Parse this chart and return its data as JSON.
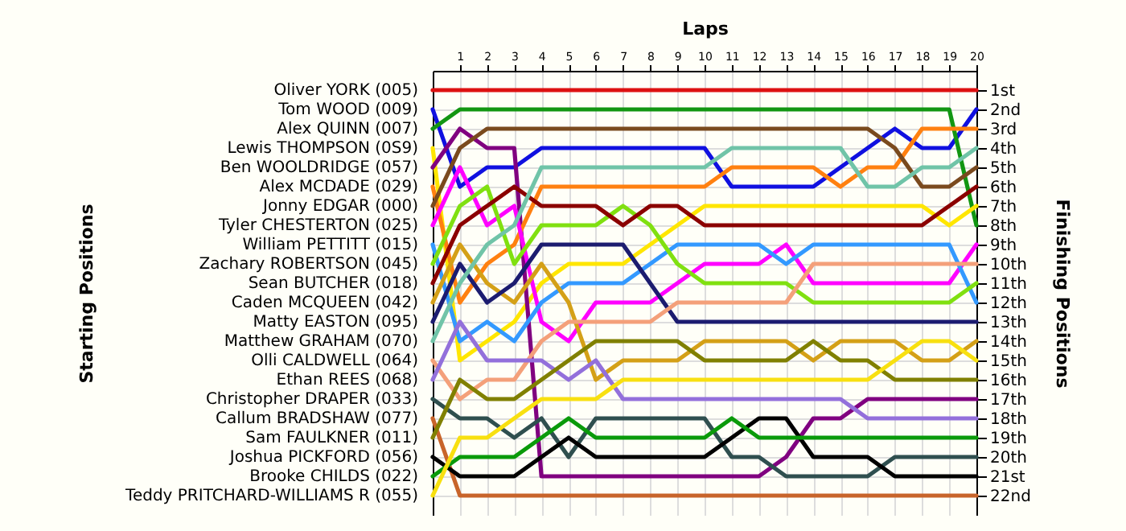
{
  "chart_data": {
    "type": "line",
    "xlabel": "Laps",
    "legend_title": "Starting Positions",
    "ylabel": "Finishing Positions",
    "x": [
      0,
      1,
      2,
      3,
      4,
      5,
      6,
      7,
      8,
      9,
      10,
      11,
      12,
      13,
      14,
      15,
      16,
      17,
      18,
      19,
      20
    ],
    "xlim": [
      0,
      20
    ],
    "xticks": [
      1,
      2,
      3,
      4,
      5,
      6,
      7,
      8,
      9,
      10,
      11,
      12,
      13,
      14,
      15,
      16,
      17,
      18,
      19,
      20
    ],
    "ylim": [
      23,
      0
    ],
    "yticks": [
      {
        "value": 1,
        "label": "1st"
      },
      {
        "value": 2,
        "label": "2nd"
      },
      {
        "value": 3,
        "label": "3rd"
      },
      {
        "value": 4,
        "label": "4th"
      },
      {
        "value": 5,
        "label": "5th"
      },
      {
        "value": 6,
        "label": "6th"
      },
      {
        "value": 7,
        "label": "7th"
      },
      {
        "value": 8,
        "label": "8th"
      },
      {
        "value": 9,
        "label": "9th"
      },
      {
        "value": 10,
        "label": "10th"
      },
      {
        "value": 11,
        "label": "11th"
      },
      {
        "value": 12,
        "label": "12th"
      },
      {
        "value": 13,
        "label": "13th"
      },
      {
        "value": 14,
        "label": "14th"
      },
      {
        "value": 15,
        "label": "15th"
      },
      {
        "value": 16,
        "label": "16th"
      },
      {
        "value": 17,
        "label": "17th"
      },
      {
        "value": 18,
        "label": "18th"
      },
      {
        "value": 19,
        "label": "19th"
      },
      {
        "value": 20,
        "label": "20th"
      },
      {
        "value": 21,
        "label": "21st"
      },
      {
        "value": 22,
        "label": "22nd"
      }
    ],
    "grid": true,
    "legend": "left",
    "marker": "none",
    "line_style": "solid",
    "series": [
      {
        "name": "Oliver YORK (005)",
        "color": "#dd1111",
        "values": [
          1,
          1,
          1,
          1,
          1,
          1,
          1,
          1,
          1,
          1,
          1,
          1,
          1,
          1,
          1,
          1,
          1,
          1,
          1,
          1,
          1
        ]
      },
      {
        "name": "Tom WOOD (009)",
        "color": "#1010e0",
        "values": [
          2,
          6,
          5,
          5,
          4,
          4,
          4,
          4,
          4,
          4,
          4,
          6,
          6,
          6,
          6,
          5,
          4,
          3,
          4,
          4,
          2
        ]
      },
      {
        "name": "Alex QUINN (007)",
        "color": "#129612",
        "values": [
          3,
          2,
          2,
          2,
          2,
          2,
          2,
          2,
          2,
          2,
          2,
          2,
          2,
          2,
          2,
          2,
          2,
          2,
          2,
          2,
          8
        ]
      },
      {
        "name": "Lewis THOMPSON (0S9)",
        "color": "#ffe600",
        "values": [
          4,
          15,
          14,
          13,
          11,
          10,
          10,
          10,
          9,
          8,
          7,
          7,
          7,
          7,
          7,
          7,
          7,
          7,
          7,
          8,
          7
        ]
      },
      {
        "name": "Ben WOOLDRIDGE (057)",
        "color": "#800080",
        "values": [
          5,
          3,
          4,
          4,
          21,
          21,
          21,
          21,
          21,
          21,
          21,
          21,
          21,
          20,
          18,
          18,
          17,
          17,
          17,
          17,
          17
        ]
      },
      {
        "name": "Alex MCDADE (029)",
        "color": "#ff8010",
        "values": [
          6,
          12,
          10,
          9,
          6,
          6,
          6,
          6,
          6,
          6,
          6,
          5,
          5,
          5,
          5,
          6,
          5,
          5,
          3,
          3,
          3
        ]
      },
      {
        "name": "Jonny EDGAR (000)",
        "color": "#7a4a1e",
        "values": [
          7,
          4,
          3,
          3,
          3,
          3,
          3,
          3,
          3,
          3,
          3,
          3,
          3,
          3,
          3,
          3,
          3,
          4,
          6,
          6,
          5
        ]
      },
      {
        "name": "Tyler CHESTERTON (025)",
        "color": "#ff00ff",
        "values": [
          8,
          5,
          8,
          7,
          13,
          14,
          12,
          12,
          12,
          11,
          10,
          10,
          10,
          9,
          11,
          11,
          11,
          11,
          11,
          11,
          9
        ]
      },
      {
        "name": "William PETTITT (015)",
        "color": "#3399ff",
        "values": [
          9,
          14,
          13,
          14,
          12,
          11,
          11,
          11,
          10,
          9,
          9,
          9,
          9,
          10,
          9,
          9,
          9,
          9,
          9,
          9,
          12
        ]
      },
      {
        "name": "Zachary ROBERTSON (045)",
        "color": "#80e010",
        "values": [
          10,
          7,
          6,
          10,
          8,
          8,
          8,
          7,
          8,
          10,
          11,
          11,
          11,
          11,
          12,
          12,
          12,
          12,
          12,
          12,
          11
        ]
      },
      {
        "name": "Sean BUTCHER (018)",
        "color": "#8b0000",
        "values": [
          11,
          8,
          7,
          6,
          7,
          7,
          7,
          8,
          7,
          7,
          8,
          8,
          8,
          8,
          8,
          8,
          8,
          8,
          8,
          7,
          6
        ]
      },
      {
        "name": "Caden MCQUEEN (042)",
        "color": "#d4a017",
        "values": [
          12,
          9,
          11,
          12,
          10,
          12,
          16,
          15,
          15,
          15,
          14,
          14,
          14,
          14,
          15,
          14,
          14,
          14,
          15,
          15,
          14
        ]
      },
      {
        "name": "Matty EASTON (095)",
        "color": "#1c1c70",
        "values": [
          13,
          10,
          12,
          11,
          9,
          9,
          9,
          9,
          11,
          13,
          13,
          13,
          13,
          13,
          13,
          13,
          13,
          13,
          13,
          13,
          13
        ]
      },
      {
        "name": "Matthew GRAHAM (070)",
        "color": "#70c4a8",
        "values": [
          14,
          11,
          9,
          8,
          5,
          5,
          5,
          5,
          5,
          5,
          5,
          4,
          4,
          4,
          4,
          4,
          6,
          6,
          5,
          5,
          4
        ]
      },
      {
        "name": "Olli CALDWELL (064)",
        "color": "#f4a07a",
        "values": [
          15,
          17,
          16,
          16,
          14,
          13,
          13,
          13,
          13,
          12,
          12,
          12,
          12,
          12,
          10,
          10,
          10,
          10,
          10,
          10,
          10
        ]
      },
      {
        "name": "Ethan REES (068)",
        "color": "#9370db",
        "values": [
          16,
          13,
          15,
          15,
          15,
          16,
          15,
          17,
          17,
          17,
          17,
          17,
          17,
          17,
          17,
          17,
          18,
          18,
          18,
          18,
          18
        ]
      },
      {
        "name": "Christopher DRAPER (033)",
        "color": "#2f4f4f",
        "values": [
          17,
          18,
          18,
          19,
          18,
          20,
          18,
          18,
          18,
          18,
          18,
          20,
          20,
          21,
          21,
          21,
          21,
          20,
          20,
          20,
          20
        ]
      },
      {
        "name": "Callum BRADSHAW (077)",
        "color": "#c8642a",
        "values": [
          18,
          22,
          22,
          22,
          22,
          22,
          22,
          22,
          22,
          22,
          22,
          22,
          22,
          22,
          22,
          22,
          22,
          22,
          22,
          22,
          22
        ]
      },
      {
        "name": "Sam FAULKNER (011)",
        "color": "#808000",
        "values": [
          19,
          16,
          17,
          17,
          16,
          15,
          14,
          14,
          14,
          14,
          15,
          15,
          15,
          15,
          14,
          15,
          15,
          16,
          16,
          16,
          16
        ]
      },
      {
        "name": "Joshua PICKFORD (056)",
        "color": "#000000",
        "values": [
          20,
          21,
          21,
          21,
          20,
          19,
          20,
          20,
          20,
          20,
          20,
          19,
          18,
          18,
          20,
          20,
          20,
          21,
          21,
          21,
          21
        ]
      },
      {
        "name": "Brooke CHILDS (022)",
        "color": "#0a9a0a",
        "values": [
          21,
          20,
          20,
          20,
          19,
          18,
          19,
          19,
          19,
          19,
          19,
          18,
          19,
          19,
          19,
          19,
          19,
          19,
          19,
          19,
          19
        ]
      },
      {
        "name": "Teddy PRITCHARD-WILLIAMS R (055)",
        "color": "#f8e010",
        "values": [
          22,
          19,
          19,
          18,
          17,
          17,
          17,
          16,
          16,
          16,
          16,
          16,
          16,
          16,
          16,
          16,
          16,
          15,
          14,
          14,
          15
        ]
      }
    ]
  }
}
